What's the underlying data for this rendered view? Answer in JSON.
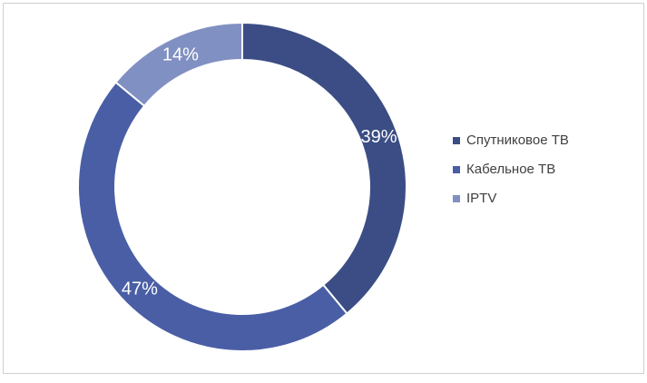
{
  "chart_data": {
    "type": "donut",
    "categories": [
      "Спутниковое ТВ",
      "Кабельное ТВ",
      "IPTV"
    ],
    "values": [
      39,
      47,
      14
    ],
    "value_labels": [
      "39%",
      "47%",
      "14%"
    ],
    "colors": [
      "#3b4d84",
      "#4a5ea6",
      "#8190c2"
    ],
    "legend": "right"
  }
}
